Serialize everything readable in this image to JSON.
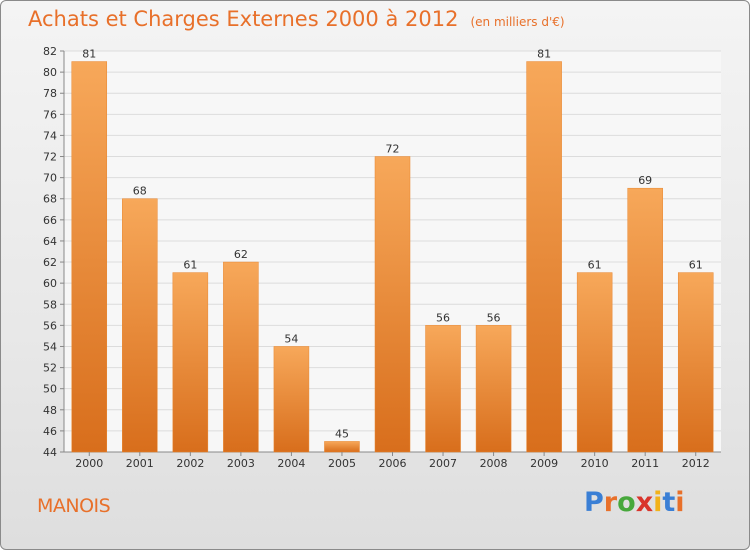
{
  "header": {
    "title": "Achats et Charges Externes 2000 à 2012",
    "subtitle": "(en milliers d'€)"
  },
  "footer": {
    "commune": "MANOIS",
    "logo_text": "Proxiti",
    "logo_letters": [
      {
        "char": "P",
        "color": "#3a7fd5"
      },
      {
        "char": "r",
        "color": "#e8702a"
      },
      {
        "char": "o",
        "color": "#47a83c"
      },
      {
        "char": "x",
        "color": "#d9342b"
      },
      {
        "char": "i",
        "color": "#f2b21a"
      },
      {
        "char": "t",
        "color": "#3a7fd5"
      },
      {
        "char": "i",
        "color": "#e8702a"
      }
    ]
  },
  "colors": {
    "accent": "#e8702a",
    "bar_light": "#f7a85a",
    "bar_dark": "#d86e1c"
  },
  "chart_data": {
    "type": "bar",
    "title": "Achats et Charges Externes 2000 à 2012",
    "subtitle": "(en milliers d'€)",
    "categories": [
      "2000",
      "2001",
      "2002",
      "2003",
      "2004",
      "2005",
      "2006",
      "2007",
      "2008",
      "2009",
      "2010",
      "2011",
      "2012"
    ],
    "values": [
      81,
      68,
      61,
      62,
      54,
      45,
      72,
      56,
      56,
      81,
      61,
      69,
      61
    ],
    "ylim": [
      44,
      82
    ],
    "yticks": [
      44,
      46,
      48,
      50,
      52,
      54,
      56,
      58,
      60,
      62,
      64,
      66,
      68,
      70,
      72,
      74,
      76,
      78,
      80,
      82
    ],
    "grid": true,
    "data_labels": true
  }
}
